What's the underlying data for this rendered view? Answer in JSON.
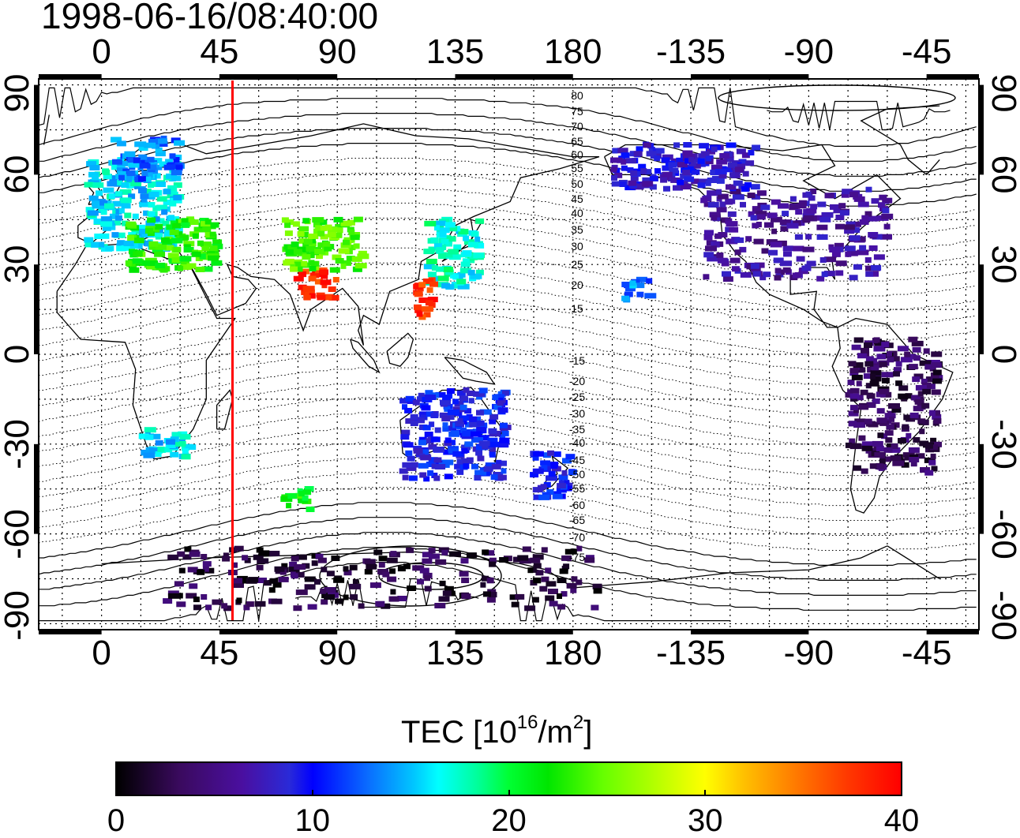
{
  "title": "1998-06-16/08:40:00",
  "map": {
    "top_labels": [
      "0",
      "45",
      "90",
      "135",
      "180",
      "-135",
      "-90",
      "-45"
    ],
    "bottom_labels": [
      "0",
      "45",
      "90",
      "135",
      "180",
      "-135",
      "-90",
      "-45"
    ],
    "left_labels": [
      "90",
      "60",
      "30",
      "0",
      "-30",
      "-60",
      "-90"
    ],
    "right_labels": [
      "90",
      "60",
      "30",
      "0",
      "-30",
      "-60",
      "-90"
    ],
    "lon_ticks": [
      0,
      45,
      90,
      135,
      180,
      -135,
      -90,
      -45
    ],
    "lat_ticks": [
      90,
      60,
      30,
      0,
      -30,
      -60,
      -90
    ],
    "lon_range": [
      -24,
      335
    ],
    "lat_range": [
      -92,
      92
    ],
    "red_meridian_lon": 50,
    "magnetic_contour_labels": [
      "80",
      "75",
      "70",
      "65",
      "60",
      "55",
      "50",
      "45",
      "40",
      "35",
      "30",
      "25",
      "20",
      "15",
      "-15",
      "-20",
      "-25",
      "-30",
      "-35",
      "-40",
      "-45",
      "-50",
      "-55",
      "-60",
      "-65",
      "-70",
      "-75"
    ],
    "magnetic_contour_values": [
      80,
      75,
      70,
      65,
      60,
      55,
      50,
      45,
      40,
      35,
      30,
      25,
      20,
      15,
      -15,
      -20,
      -25,
      -30,
      -35,
      -40,
      -45,
      -50,
      -55,
      -60,
      -65,
      -70,
      -75
    ],
    "colors": {
      "red_line": "#ff0000",
      "frame": "#000000",
      "grid": "#000000"
    }
  },
  "colorbar": {
    "label_main": "TEC  [10",
    "label_sup1": "16",
    "label_mid": "/m",
    "label_sup2": "2",
    "label_end": "]",
    "tick_labels": [
      "0",
      "10",
      "20",
      "30",
      "40"
    ],
    "tick_values": [
      0,
      10,
      20,
      30,
      40
    ],
    "range": [
      0,
      40
    ]
  },
  "tec_clusters": [
    {
      "region": "europe",
      "lon": [
        -5,
        30
      ],
      "lat": [
        35,
        65
      ],
      "tec": 16
    },
    {
      "region": "scandinavia",
      "lon": [
        5,
        30
      ],
      "lat": [
        58,
        72
      ],
      "tec": 13
    },
    {
      "region": "mediterranean",
      "lon": [
        10,
        45
      ],
      "lat": [
        28,
        45
      ],
      "tec": 23
    },
    {
      "region": "japan",
      "lon": [
        125,
        145
      ],
      "lat": [
        22,
        45
      ],
      "tec": 17
    },
    {
      "region": "china-south",
      "lon": [
        120,
        128
      ],
      "lat": [
        12,
        25
      ],
      "tec": 38
    },
    {
      "region": "india",
      "lon": [
        75,
        90
      ],
      "lat": [
        18,
        28
      ],
      "tec": 38
    },
    {
      "region": "central-asia",
      "lon": [
        70,
        100
      ],
      "lat": [
        28,
        45
      ],
      "tec": 24
    },
    {
      "region": "north-america",
      "lon": [
        -130,
        -60
      ],
      "lat": [
        25,
        55
      ],
      "tec": 6
    },
    {
      "region": "alaska-canada",
      "lon": [
        -165,
        -110
      ],
      "lat": [
        55,
        70
      ],
      "tec": 8
    },
    {
      "region": "south-america",
      "lon": [
        -75,
        -40
      ],
      "lat": [
        -40,
        5
      ],
      "tec": 3
    },
    {
      "region": "australia",
      "lon": [
        115,
        155
      ],
      "lat": [
        -42,
        -12
      ],
      "tec": 10
    },
    {
      "region": "new-zealand",
      "lon": [
        165,
        180
      ],
      "lat": [
        -48,
        -33
      ],
      "tec": 10
    },
    {
      "region": "antarctica",
      "lon": [
        25,
        190
      ],
      "lat": [
        -85,
        -65
      ],
      "tec": 2
    },
    {
      "region": "hawaii",
      "lon": [
        -160,
        -150
      ],
      "lat": [
        18,
        25
      ],
      "tec": 13
    },
    {
      "region": "south-africa",
      "lon": [
        15,
        35
      ],
      "lat": [
        -35,
        -25
      ],
      "tec": 16
    },
    {
      "region": "southern-ocean",
      "lon": [
        70,
        80
      ],
      "lat": [
        -52,
        -45
      ],
      "tec": 22
    }
  ]
}
